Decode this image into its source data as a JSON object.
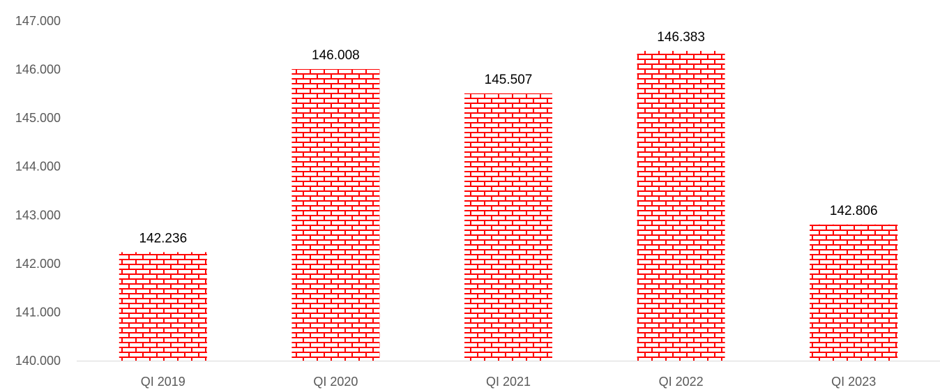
{
  "chart_data": {
    "type": "bar",
    "categories": [
      "QI 2019",
      "QI 2020",
      "QI 2021",
      "QI 2022",
      "QI 2023"
    ],
    "values": [
      142236,
      146008,
      145507,
      146383,
      142806
    ],
    "data_labels": [
      "142.236",
      "146.008",
      "145.507",
      "146.383",
      "142.806"
    ],
    "y_ticks": [
      140000,
      141000,
      142000,
      143000,
      144000,
      145000,
      146000,
      147000
    ],
    "y_tick_labels": [
      "140.000",
      "141.000",
      "142.000",
      "143.000",
      "144.000",
      "145.000",
      "146.000",
      "147.000"
    ],
    "ylim": [
      140000,
      147000
    ],
    "grid": false,
    "legend": "none",
    "bar_pattern": "brick",
    "colors": {
      "bar_pattern": "#ff0000",
      "bar_background": "#ffffff",
      "axis": "#d9d9d9",
      "tick_text": "#595959",
      "label_text": "#000000"
    }
  }
}
